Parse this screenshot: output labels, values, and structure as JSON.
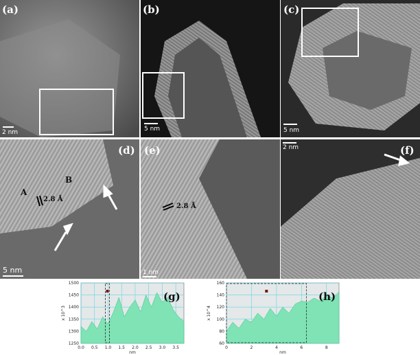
{
  "panels": [
    {
      "label": "(a)",
      "scale_bar": "2 nm"
    },
    {
      "label": "(b)",
      "scale_bar": "5 nm"
    },
    {
      "label": "(c)",
      "scale_bar": "5 nm"
    },
    {
      "label": "(d)",
      "scale_bar": "5 nm"
    },
    {
      "label": "(e)",
      "scale_bar": "1 nm"
    },
    {
      "label": "(f)",
      "scale_bar": "2 nm"
    }
  ],
  "annotations": {
    "d_a": "A",
    "d_b": "B",
    "d_spacing": "2.8 Å",
    "e_spacing": "2.8 Å"
  },
  "chart_data": [
    {
      "type": "area",
      "panel_label": "(g)",
      "x_label": "nm",
      "y_label": "x 10^3",
      "color": "#7fe3b5",
      "x": [
        0,
        0.2,
        0.4,
        0.6,
        0.8,
        1.0,
        1.2,
        1.4,
        1.6,
        1.8,
        2.0,
        2.2,
        2.4,
        2.6,
        2.8,
        3.0,
        3.2,
        3.4,
        3.6,
        3.8
      ],
      "values": [
        1320,
        1300,
        1340,
        1310,
        1360,
        1330,
        1380,
        1440,
        1360,
        1400,
        1430,
        1380,
        1450,
        1400,
        1460,
        1420,
        1440,
        1390,
        1360,
        1340
      ],
      "xlim": [
        0,
        3.8
      ],
      "ylim": [
        1250,
        1500
      ],
      "xticks": [
        {
          "value": 0,
          "label": "0.0"
        },
        0.5,
        {
          "value": 1,
          "label": "1.0"
        },
        1.5,
        {
          "value": 2,
          "label": "2.0"
        },
        2.5,
        {
          "value": 3,
          "label": "3.0"
        },
        3.5
      ],
      "yticks": [
        1250,
        1300,
        1350,
        1400,
        1450,
        1500
      ],
      "grid": true
    },
    {
      "type": "area",
      "panel_label": "(h)",
      "x_label": "nm",
      "y_label": "x 10^4",
      "color": "#7fe3b5",
      "x": [
        0,
        0.5,
        1,
        1.5,
        2,
        2.5,
        3,
        3.5,
        4,
        4.5,
        5,
        5.5,
        6,
        6.5,
        7,
        7.5,
        8,
        8.5,
        9
      ],
      "values": [
        80,
        95,
        85,
        100,
        95,
        110,
        100,
        118,
        105,
        120,
        110,
        125,
        130,
        128,
        135,
        130,
        140,
        135,
        145
      ],
      "xlim": [
        0,
        9
      ],
      "ylim": [
        60,
        160
      ],
      "xticks": [
        0,
        2,
        4,
        6,
        8
      ],
      "yticks": [
        60,
        80,
        100,
        120,
        140,
        160
      ],
      "grid": true
    }
  ]
}
